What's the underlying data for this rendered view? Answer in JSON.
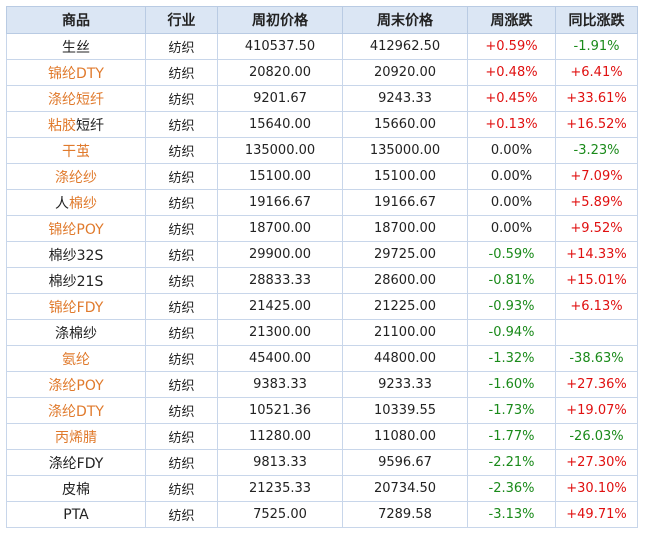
{
  "table": {
    "headers": [
      "商品",
      "行业",
      "周初价格",
      "周末价格",
      "周涨跌",
      "同比涨跌"
    ],
    "rows": [
      {
        "name_parts": [
          {
            "t": "生丝",
            "c": "black"
          }
        ],
        "industry": "纺织",
        "start": "410537.50",
        "end": "412962.50",
        "week": "+0.59%",
        "week_dir": "up",
        "yoy": "-1.91%",
        "yoy_dir": "down"
      },
      {
        "name_parts": [
          {
            "t": "锦纶DTY",
            "c": "orange"
          }
        ],
        "industry": "纺织",
        "start": "20820.00",
        "end": "20920.00",
        "week": "+0.48%",
        "week_dir": "up",
        "yoy": "+6.41%",
        "yoy_dir": "up"
      },
      {
        "name_parts": [
          {
            "t": "涤纶短纤",
            "c": "orange"
          }
        ],
        "industry": "纺织",
        "start": "9201.67",
        "end": "9243.33",
        "week": "+0.45%",
        "week_dir": "up",
        "yoy": "+33.61%",
        "yoy_dir": "up"
      },
      {
        "name_parts": [
          {
            "t": "粘胶",
            "c": "orange"
          },
          {
            "t": "短纤",
            "c": "black"
          }
        ],
        "industry": "纺织",
        "start": "15640.00",
        "end": "15660.00",
        "week": "+0.13%",
        "week_dir": "up",
        "yoy": "+16.52%",
        "yoy_dir": "up"
      },
      {
        "name_parts": [
          {
            "t": "干茧",
            "c": "orange"
          }
        ],
        "industry": "纺织",
        "start": "135000.00",
        "end": "135000.00",
        "week": "0.00%",
        "week_dir": "flat",
        "yoy": "-3.23%",
        "yoy_dir": "down"
      },
      {
        "name_parts": [
          {
            "t": "涤纶纱",
            "c": "orange"
          }
        ],
        "industry": "纺织",
        "start": "15100.00",
        "end": "15100.00",
        "week": "0.00%",
        "week_dir": "flat",
        "yoy": "+7.09%",
        "yoy_dir": "up"
      },
      {
        "name_parts": [
          {
            "t": "人",
            "c": "black"
          },
          {
            "t": "棉纱",
            "c": "orange"
          }
        ],
        "industry": "纺织",
        "start": "19166.67",
        "end": "19166.67",
        "week": "0.00%",
        "week_dir": "flat",
        "yoy": "+5.89%",
        "yoy_dir": "up"
      },
      {
        "name_parts": [
          {
            "t": "锦纶POY",
            "c": "orange"
          }
        ],
        "industry": "纺织",
        "start": "18700.00",
        "end": "18700.00",
        "week": "0.00%",
        "week_dir": "flat",
        "yoy": "+9.52%",
        "yoy_dir": "up"
      },
      {
        "name_parts": [
          {
            "t": "棉纱32S",
            "c": "black"
          }
        ],
        "industry": "纺织",
        "start": "29900.00",
        "end": "29725.00",
        "week": "-0.59%",
        "week_dir": "down",
        "yoy": "+14.33%",
        "yoy_dir": "up"
      },
      {
        "name_parts": [
          {
            "t": "棉纱21S",
            "c": "black"
          }
        ],
        "industry": "纺织",
        "start": "28833.33",
        "end": "28600.00",
        "week": "-0.81%",
        "week_dir": "down",
        "yoy": "+15.01%",
        "yoy_dir": "up"
      },
      {
        "name_parts": [
          {
            "t": "锦纶FDY",
            "c": "orange"
          }
        ],
        "industry": "纺织",
        "start": "21425.00",
        "end": "21225.00",
        "week": "-0.93%",
        "week_dir": "down",
        "yoy": "+6.13%",
        "yoy_dir": "up"
      },
      {
        "name_parts": [
          {
            "t": "涤棉纱",
            "c": "black"
          }
        ],
        "industry": "纺织",
        "start": "21300.00",
        "end": "21100.00",
        "week": "-0.94%",
        "week_dir": "down",
        "yoy": "",
        "yoy_dir": "flat"
      },
      {
        "name_parts": [
          {
            "t": "氨纶",
            "c": "orange"
          }
        ],
        "industry": "纺织",
        "start": "45400.00",
        "end": "44800.00",
        "week": "-1.32%",
        "week_dir": "down",
        "yoy": "-38.63%",
        "yoy_dir": "down"
      },
      {
        "name_parts": [
          {
            "t": "涤纶POY",
            "c": "orange"
          }
        ],
        "industry": "纺织",
        "start": "9383.33",
        "end": "9233.33",
        "week": "-1.60%",
        "week_dir": "down",
        "yoy": "+27.36%",
        "yoy_dir": "up"
      },
      {
        "name_parts": [
          {
            "t": "涤纶DTY",
            "c": "orange"
          }
        ],
        "industry": "纺织",
        "start": "10521.36",
        "end": "10339.55",
        "week": "-1.73%",
        "week_dir": "down",
        "yoy": "+19.07%",
        "yoy_dir": "up"
      },
      {
        "name_parts": [
          {
            "t": "丙烯腈",
            "c": "orange"
          }
        ],
        "industry": "纺织",
        "start": "11280.00",
        "end": "11080.00",
        "week": "-1.77%",
        "week_dir": "down",
        "yoy": "-26.03%",
        "yoy_dir": "down"
      },
      {
        "name_parts": [
          {
            "t": "涤纶FDY",
            "c": "black"
          }
        ],
        "industry": "纺织",
        "start": "9813.33",
        "end": "9596.67",
        "week": "-2.21%",
        "week_dir": "down",
        "yoy": "+27.30%",
        "yoy_dir": "up"
      },
      {
        "name_parts": [
          {
            "t": "皮棉",
            "c": "black"
          }
        ],
        "industry": "纺织",
        "start": "21235.33",
        "end": "20734.50",
        "week": "-2.36%",
        "week_dir": "down",
        "yoy": "+30.10%",
        "yoy_dir": "up"
      },
      {
        "name_parts": [
          {
            "t": "PTA",
            "c": "black"
          }
        ],
        "industry": "纺织",
        "start": "7525.00",
        "end": "7289.58",
        "week": "-3.13%",
        "week_dir": "down",
        "yoy": "+49.71%",
        "yoy_dir": "up"
      }
    ]
  }
}
